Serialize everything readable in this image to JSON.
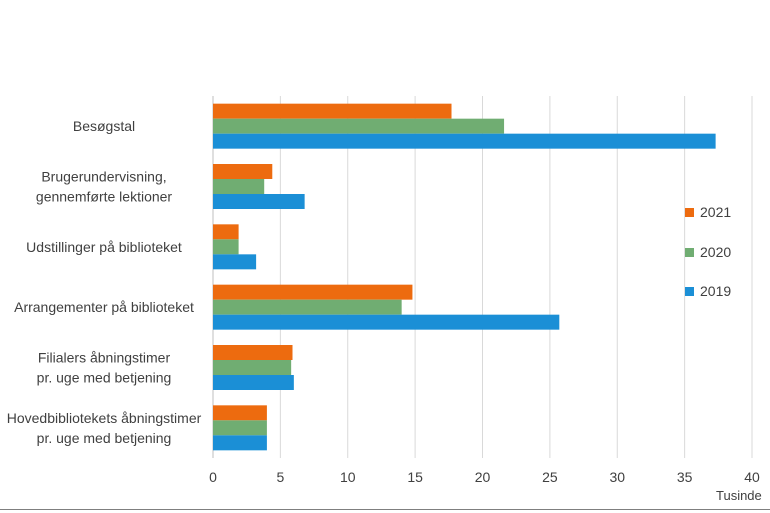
{
  "chart_data": {
    "type": "bar",
    "orientation": "horizontal",
    "categories": [
      [
        "Besøgstal"
      ],
      [
        "Brugerundervisning,",
        "gennemførte lektioner"
      ],
      [
        "Udstillinger på biblioteket"
      ],
      [
        "Arrangementer på biblioteket"
      ],
      [
        "Filialers åbningstimer",
        "pr. uge med betjening"
      ],
      [
        "Hovedbibliotekets åbningstimer",
        "pr. uge med betjening"
      ]
    ],
    "series": [
      {
        "name": "2021",
        "color": "#ED6B0F",
        "values": [
          17.7,
          4.4,
          1.9,
          14.8,
          5.9,
          4.0
        ]
      },
      {
        "name": "2020",
        "color": "#70AD72",
        "values": [
          21.6,
          3.8,
          1.9,
          14.0,
          5.8,
          4.0
        ]
      },
      {
        "name": "2019",
        "color": "#1B8FD6",
        "values": [
          37.3,
          6.8,
          3.2,
          25.7,
          6.0,
          4.0
        ]
      }
    ],
    "xlim": [
      0,
      40
    ],
    "xticks": [
      "0",
      "5",
      "10",
      "15",
      "20",
      "25",
      "30",
      "35",
      "40"
    ],
    "x_unit_label": "Tusinde",
    "grid": true,
    "legend_position": "right"
  }
}
